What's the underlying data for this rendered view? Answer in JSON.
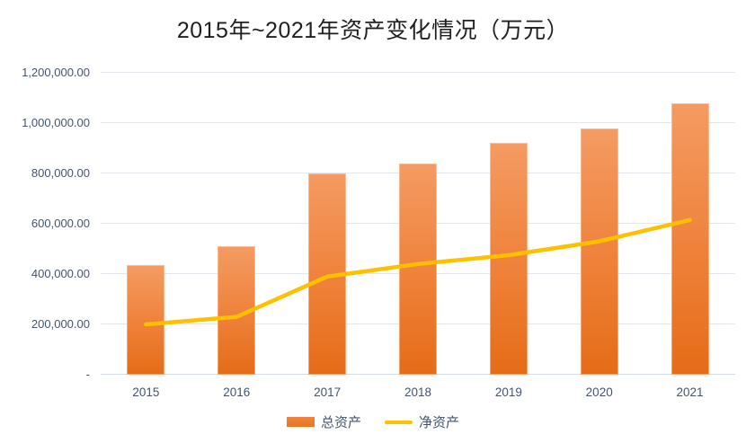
{
  "chart_data": {
    "type": "combo",
    "title": "2015年~2021年资产变化情况（万元）",
    "categories": [
      "2015",
      "2016",
      "2017",
      "2018",
      "2019",
      "2020",
      "2021"
    ],
    "series": [
      {
        "name": "总资产",
        "type": "bar",
        "values": [
          435000,
          510000,
          800000,
          840000,
          920000,
          980000,
          1080000
        ]
      },
      {
        "name": "净资产",
        "type": "line",
        "values": [
          200000,
          230000,
          390000,
          440000,
          475000,
          530000,
          615000
        ]
      }
    ],
    "xlabel": "",
    "ylabel": "",
    "ylim": [
      0,
      1200000
    ],
    "y_ticks": [
      0,
      200000,
      400000,
      600000,
      800000,
      1000000,
      1200000
    ],
    "y_tick_labels": [
      "-",
      "200,000.00",
      "400,000.00",
      "600,000.00",
      "800,000.00",
      "1,000,000.00",
      "1,200,000.00"
    ],
    "grid": true,
    "legend_position": "bottom",
    "colors": {
      "bar_gradient_top": "#F49B63",
      "bar_gradient_bottom": "#E56C17",
      "bar_legend": "#ED7D31",
      "line": "#FFC000",
      "gridline": "#E3E7EE",
      "axis_text": "#44546A",
      "title_text": "#1F1F1F",
      "background": "#FFFFFF"
    }
  }
}
